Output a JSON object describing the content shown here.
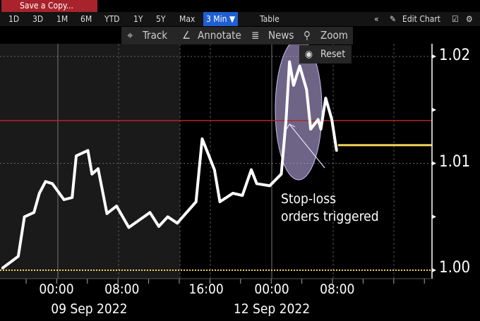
{
  "toolbar": {
    "save_label": "Save a Copy...",
    "ranges": [
      "1D",
      "3D",
      "1M",
      "6M",
      "YTD",
      "1Y",
      "5Y",
      "Max"
    ],
    "interval": "3 Min ▼",
    "table": "Table",
    "collapse": "«",
    "edit_chart": "Edit Chart",
    "gear": "gear-icon"
  },
  "float_toolbar": {
    "track": "Track",
    "annotate": "Annotate",
    "news": "News",
    "zoom": "Zoom",
    "reset": "Reset"
  },
  "annotation": {
    "line1": "Stop-loss",
    "line2": "orders triggered"
  },
  "colors": {
    "line": "#ffffff",
    "red_level": "#b0262a",
    "last_price": "#f2d35a",
    "highlight": "#b8a6e0",
    "accent": "#1f5fd0"
  },
  "chart_data": {
    "type": "line",
    "ylim": [
      0.999,
      1.0205
    ],
    "yticks": [
      "1.00",
      "1.01",
      "1.02"
    ],
    "xtick_labels": [
      {
        "t": "09 00:00",
        "label": "00:00"
      },
      {
        "t": "09 08:00",
        "label": "08:00"
      },
      {
        "t": "11 16:00",
        "label": "16:00"
      },
      {
        "t": "12 00:00",
        "label": "00:00"
      },
      {
        "t": "12 08:00",
        "label": "08:00"
      }
    ],
    "date_labels": [
      {
        "t": "09 04:00",
        "label": "09 Sep 2022"
      },
      {
        "t": "12 00:00",
        "label": "12 Sep 2022"
      }
    ],
    "reference_lines": {
      "red": 1.014,
      "last_price": 1.0117,
      "base_dotted": 1.0
    },
    "grid": true,
    "series": [
      {
        "points": [
          [
            "08 17:25",
            1.0002
          ],
          [
            "08 19:20",
            1.0013
          ],
          [
            "08 20:05",
            1.005
          ],
          [
            "08 21:15",
            1.0054
          ],
          [
            "08 21:55",
            1.0072
          ],
          [
            "08 22:40",
            1.0083
          ],
          [
            "08 23:30",
            1.0081
          ],
          [
            "09 00:55",
            1.0066
          ],
          [
            "09 01:55",
            1.0068
          ],
          [
            "09 02:25",
            1.0107
          ],
          [
            "09 03:50",
            1.0112
          ],
          [
            "09 04:20",
            1.009
          ],
          [
            "09 05:05",
            1.0095
          ],
          [
            "09 06:10",
            1.0053
          ],
          [
            "09 07:20",
            1.006
          ],
          [
            "09 08:50",
            1.004
          ],
          [
            "09 11:25",
            1.0054
          ],
          [
            "09 12:30",
            1.0041
          ],
          [
            "09 13:35",
            1.005
          ],
          [
            "09 14:45",
            1.0044
          ],
          [
            "11 14:45",
            1.0064
          ],
          [
            "11 15:30",
            1.0123
          ],
          [
            "11 17:00",
            1.0094
          ],
          [
            "11 17:40",
            1.0064
          ],
          [
            "11 19:15",
            1.0072
          ],
          [
            "11 20:25",
            1.007
          ],
          [
            "11 21:30",
            1.0094
          ],
          [
            "11 22:10",
            1.0081
          ],
          [
            "11 23:45",
            1.0079
          ],
          [
            "12 01:10",
            1.009
          ],
          [
            "12 01:45",
            1.0141
          ],
          [
            "12 02:10",
            1.0195
          ],
          [
            "12 02:40",
            1.0173
          ],
          [
            "12 03:25",
            1.0191
          ],
          [
            "12 04:15",
            1.0169
          ],
          [
            "12 04:45",
            1.0132
          ],
          [
            "12 05:40",
            1.0141
          ],
          [
            "12 06:00",
            1.0132
          ],
          [
            "12 06:35",
            1.0161
          ],
          [
            "12 07:20",
            1.0141
          ],
          [
            "12 07:55",
            1.0112
          ]
        ]
      }
    ]
  }
}
